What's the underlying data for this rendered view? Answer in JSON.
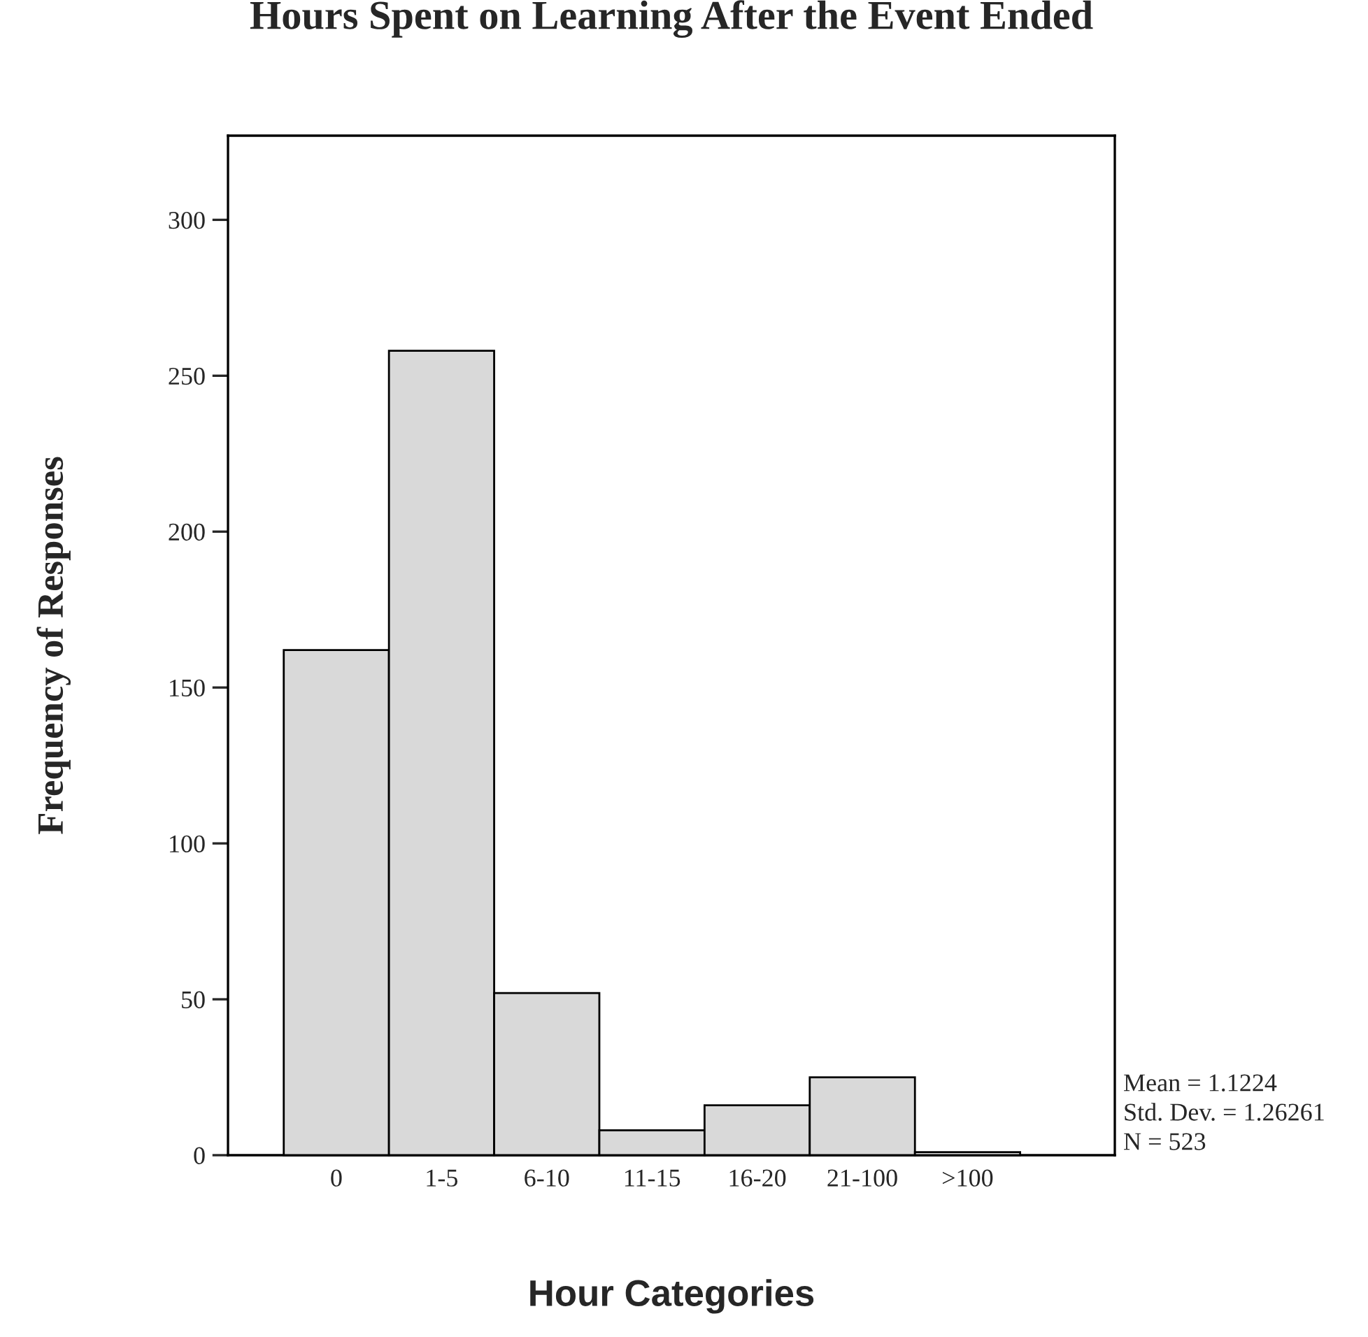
{
  "chart_data": {
    "type": "bar",
    "title": "Hours Spent on Learning After the Event Ended",
    "xlabel": "Hour Categories",
    "ylabel": "Frequency of Responses",
    "categories": [
      "0",
      "1-5",
      "6-10",
      "11-15",
      "16-20",
      "21-100",
      ">100"
    ],
    "values": [
      162,
      258,
      52,
      8,
      16,
      25,
      1
    ],
    "color": "#d9d9d9",
    "ylim": [
      0,
      327
    ],
    "yticks": [
      0,
      50,
      100,
      150,
      200,
      250,
      300
    ],
    "grid": false,
    "legend": false,
    "annotations": [
      "Mean = 1.1224",
      "Std. Dev. = 1.26261",
      "N = 523"
    ]
  }
}
